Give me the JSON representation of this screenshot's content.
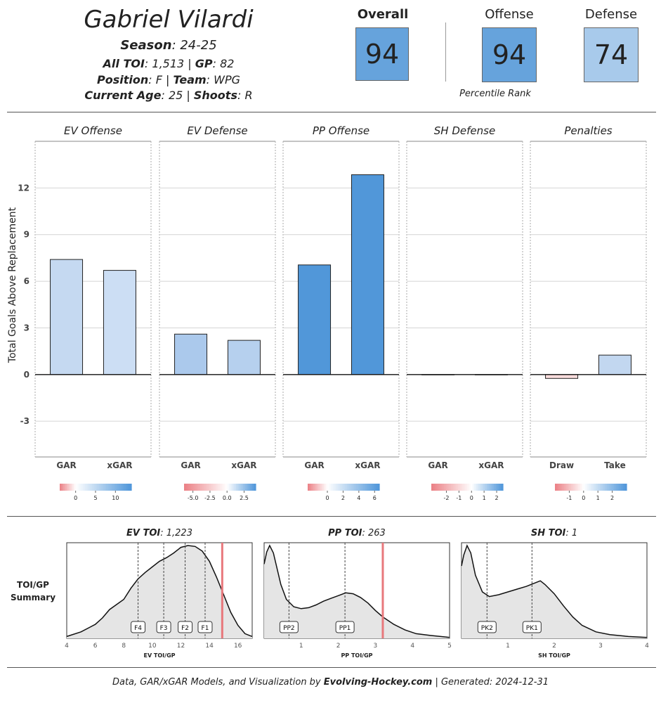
{
  "header": {
    "player_name": "Gabriel Vilardi",
    "season_label": "Season",
    "season_value": ": 24-25",
    "toi_label": "All TOI",
    "toi_value": ": 1,513 | ",
    "gp_label": "GP",
    "gp_value": ": 82",
    "position_label": "Position",
    "position_value": ": F | ",
    "team_label": "Team",
    "team_value": ": WPG",
    "age_label": "Current Age",
    "age_value": ": 25 | ",
    "shoots_label": "Shoots",
    "shoots_value": ": R"
  },
  "ranks": {
    "caption": "Percentile Rank",
    "items": [
      {
        "label": "Overall",
        "value": "94",
        "color": "#66A3DC",
        "bold": true
      },
      {
        "label": "Offense",
        "value": "94",
        "color": "#66A3DC",
        "bold": false
      },
      {
        "label": "Defense",
        "value": "74",
        "color": "#A8CAEB",
        "bold": false
      }
    ]
  },
  "chart_data": [
    {
      "type": "bar",
      "ylabel": "Total Goals Above Replacement",
      "ylim": [
        -5.3,
        15
      ],
      "yticks": [
        -3,
        0,
        3,
        6,
        9,
        12
      ],
      "panels": [
        {
          "title": "EV Offense",
          "categories": [
            "GAR",
            "xGAR"
          ],
          "values": [
            7.4,
            6.7
          ],
          "colors": [
            "#C5D9F1",
            "#CCDEF4"
          ],
          "legend": {
            "min": -4,
            "max": 14,
            "ticks": [
              0,
              5,
              10
            ],
            "tick_labels": [
              "0",
              "5",
              "10"
            ]
          }
        },
        {
          "title": "EV Defense",
          "categories": [
            "GAR",
            "xGAR"
          ],
          "values": [
            2.6,
            2.2
          ],
          "colors": [
            "#ABC9EC",
            "#B6D0EE"
          ],
          "legend": {
            "min": -6.3,
            "max": 4.2,
            "ticks": [
              -5,
              -2.5,
              0,
              2.5
            ],
            "tick_labels": [
              "-5.0",
              "-2.5",
              "0.0",
              "2.5"
            ]
          }
        },
        {
          "title": "PP Offense",
          "categories": [
            "GAR",
            "xGAR"
          ],
          "values": [
            7.05,
            12.85
          ],
          "colors": [
            "#5197D9",
            "#5197D9"
          ],
          "legend": {
            "min": -2.5,
            "max": 6.6,
            "ticks": [
              0,
              2,
              4,
              6
            ],
            "tick_labels": [
              "0",
              "2",
              "4",
              "6"
            ]
          }
        },
        {
          "title": "SH Defense",
          "categories": [
            "GAR",
            "xGAR"
          ],
          "values": [
            0,
            0
          ],
          "colors": [
            "#EEEEEE",
            "#EEEEEE"
          ],
          "legend": {
            "min": -3.2,
            "max": 2.5,
            "ticks": [
              -2,
              -1,
              0,
              1,
              2
            ],
            "tick_labels": [
              "-2",
              "-1",
              "0",
              "1",
              "2"
            ]
          }
        },
        {
          "title": "Penalties",
          "categories": [
            "Draw",
            "Take"
          ],
          "values": [
            -0.25,
            1.25
          ],
          "colors": [
            "#FADCDC",
            "#C2D7F0"
          ],
          "legend": {
            "min": -2.0,
            "max": 3.0,
            "ticks": [
              -1,
              0,
              1,
              2
            ],
            "tick_labels": [
              "-1",
              "0",
              "1",
              "2"
            ]
          }
        }
      ]
    },
    {
      "type": "area",
      "row_label": [
        "TOI/GP",
        "Summary"
      ],
      "panels": [
        {
          "title_label": "EV TOI",
          "title_value": ": 1,223",
          "xlabel": "EV TOI/GP",
          "xlim": [
            4,
            17
          ],
          "xticks": [
            4,
            6,
            8,
            10,
            12,
            14,
            16
          ],
          "player_value": 14.9,
          "density_x": [
            4,
            5,
            6,
            6.5,
            7,
            8,
            8.5,
            9,
            9.5,
            10,
            10.5,
            11,
            11.5,
            12,
            12.5,
            13,
            13.5,
            14,
            14.5,
            15,
            15.5,
            16,
            16.5,
            17
          ],
          "density_y": [
            0.02,
            0.07,
            0.15,
            0.22,
            0.31,
            0.42,
            0.54,
            0.64,
            0.71,
            0.77,
            0.83,
            0.87,
            0.92,
            0.98,
            1.0,
            0.99,
            0.94,
            0.83,
            0.66,
            0.47,
            0.28,
            0.14,
            0.05,
            0.02
          ],
          "markers": [
            {
              "label": "F4",
              "x": 9.0
            },
            {
              "label": "F3",
              "x": 10.8
            },
            {
              "label": "F2",
              "x": 12.3
            },
            {
              "label": "F1",
              "x": 13.7
            }
          ]
        },
        {
          "title_label": "PP TOI",
          "title_value": ": 263",
          "xlabel": "PP TOI/GP",
          "xlim": [
            0,
            5
          ],
          "xticks": [
            1,
            2,
            3,
            4,
            5
          ],
          "player_value": 3.2,
          "density_x": [
            0,
            0.07,
            0.15,
            0.25,
            0.35,
            0.45,
            0.6,
            0.8,
            1.0,
            1.2,
            1.4,
            1.6,
            1.8,
            2.0,
            2.2,
            2.4,
            2.6,
            2.8,
            3.0,
            3.2,
            3.5,
            3.8,
            4.1,
            4.5,
            5.0
          ],
          "density_y": [
            0.8,
            0.93,
            1.0,
            0.92,
            0.75,
            0.58,
            0.42,
            0.34,
            0.32,
            0.33,
            0.36,
            0.4,
            0.43,
            0.46,
            0.49,
            0.48,
            0.44,
            0.38,
            0.3,
            0.23,
            0.15,
            0.09,
            0.05,
            0.03,
            0.01
          ],
          "markers": [
            {
              "label": "PP2",
              "x": 0.67
            },
            {
              "label": "PP1",
              "x": 2.18
            }
          ]
        },
        {
          "title_label": "SH TOI",
          "title_value": ": 1",
          "xlabel": "SH TOI/GP",
          "xlim": [
            0,
            4
          ],
          "xticks": [
            1,
            2,
            3,
            4
          ],
          "player_value": null,
          "density_x": [
            0,
            0.05,
            0.12,
            0.2,
            0.3,
            0.45,
            0.6,
            0.8,
            1.0,
            1.2,
            1.4,
            1.6,
            1.7,
            1.8,
            2.0,
            2.2,
            2.4,
            2.6,
            2.9,
            3.2,
            3.6,
            4.0
          ],
          "density_y": [
            0.78,
            0.9,
            1.0,
            0.92,
            0.68,
            0.5,
            0.45,
            0.47,
            0.5,
            0.53,
            0.56,
            0.6,
            0.62,
            0.58,
            0.48,
            0.35,
            0.23,
            0.14,
            0.07,
            0.04,
            0.02,
            0.01
          ],
          "markers": [
            {
              "label": "PK2",
              "x": 0.55
            },
            {
              "label": "PK1",
              "x": 1.52
            }
          ]
        }
      ]
    }
  ],
  "footer": {
    "prefix": "Data, GAR/xGAR Models, and Visualization by ",
    "brand": "Evolving-Hockey.com",
    "suffix": " | Generated: 2024-12-31"
  }
}
